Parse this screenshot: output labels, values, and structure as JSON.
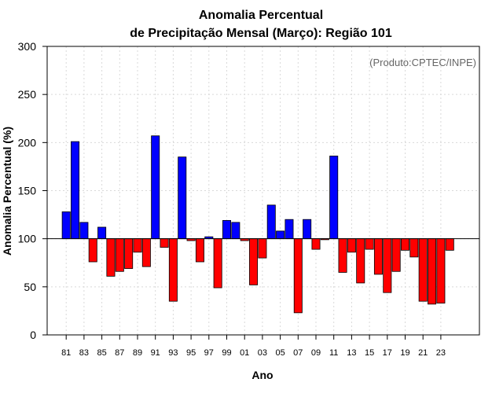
{
  "chart_data": {
    "type": "bar",
    "title_line1": "Anomalia Percentual",
    "title_line2": "de Precipitação Mensal (Março): Região 101",
    "xlabel": "Ano",
    "ylabel": "Anomalia Percentual (%)",
    "credit": "(Produto:CPTEC/INPE)",
    "ylim": [
      0,
      300
    ],
    "yticks": [
      0,
      50,
      100,
      150,
      200,
      250,
      300
    ],
    "baseline": 100,
    "grid": true,
    "colors": {
      "above": "#0000ff",
      "below": "#ff0000",
      "outline": "#000000",
      "baseline": "#000000",
      "grid": "#d9d9d9"
    },
    "categories": [
      "81",
      "82",
      "83",
      "84",
      "85",
      "86",
      "87",
      "88",
      "89",
      "90",
      "91",
      "92",
      "93",
      "94",
      "95",
      "96",
      "97",
      "98",
      "99",
      "00",
      "01",
      "02",
      "03",
      "04",
      "05",
      "06",
      "07",
      "08",
      "09",
      "10",
      "11",
      "12",
      "13",
      "14",
      "15",
      "16",
      "17",
      "18",
      "19",
      "20",
      "21",
      "22",
      "23",
      "24"
    ],
    "xtick_labels": [
      "81",
      "83",
      "85",
      "87",
      "89",
      "91",
      "93",
      "95",
      "97",
      "99",
      "01",
      "03",
      "05",
      "07",
      "09",
      "11",
      "13",
      "15",
      "17",
      "19",
      "21",
      "23"
    ],
    "values": [
      128,
      201,
      117,
      76,
      112,
      61,
      66,
      69,
      86,
      71,
      207,
      91,
      35,
      185,
      98,
      76,
      102,
      49,
      119,
      117,
      98,
      52,
      80,
      135,
      108,
      120,
      23,
      120,
      89,
      99,
      186,
      65,
      86,
      54,
      89,
      63,
      44,
      66,
      88,
      81,
      35,
      32,
      33,
      88
    ]
  }
}
